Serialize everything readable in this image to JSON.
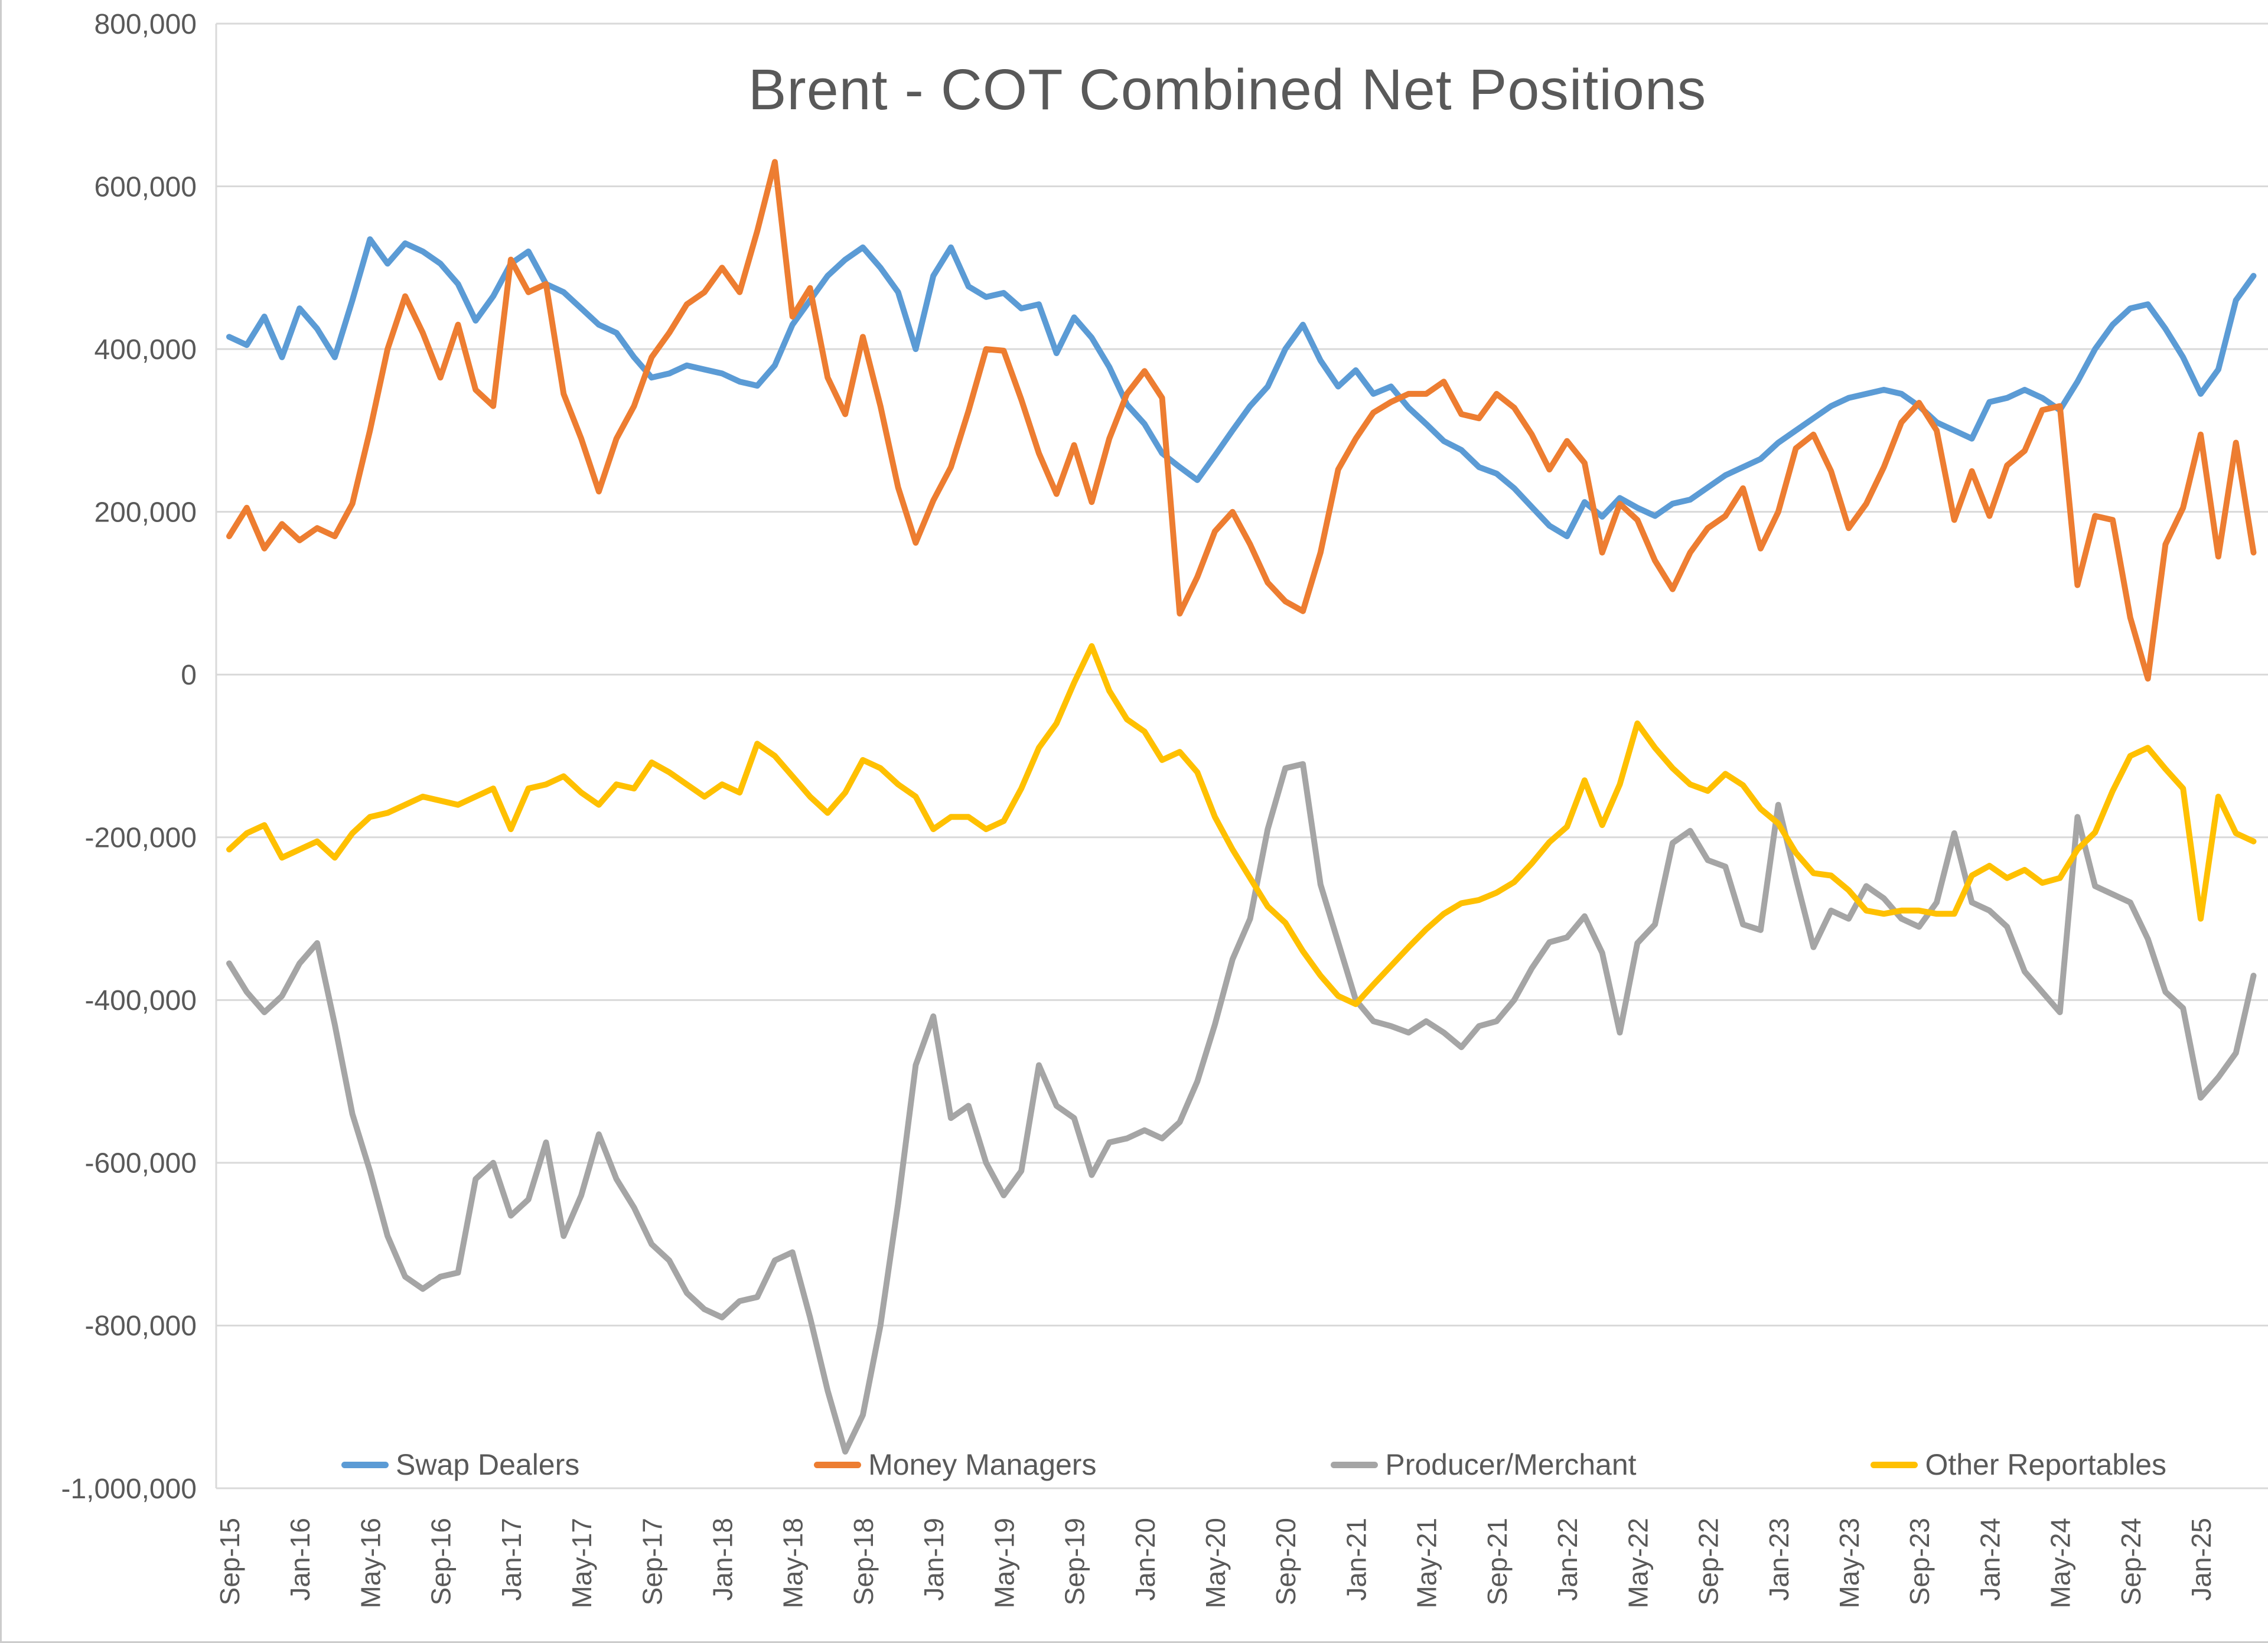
{
  "title": "Brent - COT Combined Net Positions",
  "colors": {
    "text": "#595959",
    "grid": "#D9D9D9",
    "background": "#FFFFFF"
  },
  "chart_data": {
    "type": "line",
    "title": "Brent - COT Combined Net Positions",
    "values_scale": "thousands",
    "legend_position": "bottom",
    "grid": "horizontal",
    "y_axis": {
      "min": -1000000,
      "max": 800000,
      "tick_labels": [
        "800,000",
        "600,000",
        "400,000",
        "200,000",
        "0",
        "-200,000",
        "-400,000",
        "-600,000",
        "-800,000",
        "-1,000,000"
      ],
      "tick_values": [
        800,
        600,
        400,
        200,
        0,
        -200,
        -400,
        -600,
        -800,
        -1000
      ]
    },
    "x_axis": {
      "tick_labels": [
        "Sep-15",
        "Jan-16",
        "May-16",
        "Sep-16",
        "Jan-17",
        "May-17",
        "Sep-17",
        "Jan-18",
        "May-18",
        "Sep-18",
        "Jan-19",
        "May-19",
        "Sep-19",
        "Jan-20",
        "May-20",
        "Sep-20",
        "Jan-21",
        "May-21",
        "Sep-21",
        "Jan-22",
        "May-22",
        "Sep-22",
        "Jan-23",
        "May-23",
        "Sep-23",
        "Jan-24",
        "May-24",
        "Sep-24",
        "Jan-25"
      ],
      "points_per_tick": 4,
      "frequency": "monthly samples of weekly data"
    },
    "series": [
      {
        "name": "Swap Dealers",
        "color": "#5B9BD5",
        "values": [
          415,
          405,
          440,
          390,
          450,
          425,
          390,
          460,
          535,
          505,
          530,
          520,
          505,
          480,
          435,
          465,
          505,
          520,
          480,
          470,
          450,
          430,
          420,
          390,
          365,
          370,
          380,
          375,
          370,
          360,
          355,
          380,
          430,
          460,
          490,
          510,
          525,
          500,
          470,
          400,
          490,
          525,
          477,
          464,
          469,
          450,
          455,
          395,
          439,
          414,
          378,
          332,
          308,
          272,
          255,
          239,
          269,
          300,
          330,
          354,
          400,
          430,
          386,
          354,
          374,
          345,
          354,
          328,
          308,
          287,
          276,
          255,
          247,
          229,
          206,
          183,
          170,
          212,
          194,
          217,
          205,
          195,
          210,
          215,
          230,
          245,
          255,
          265,
          285,
          300,
          315,
          330,
          340,
          345,
          350,
          345,
          330,
          310,
          300,
          290,
          335,
          340,
          350,
          340,
          325,
          360,
          400,
          430,
          450,
          455,
          425,
          390,
          345,
          375,
          460,
          490
        ]
      },
      {
        "name": "Money Managers",
        "color": "#ED7D31",
        "values": [
          170,
          205,
          155,
          185,
          165,
          180,
          170,
          210,
          300,
          400,
          465,
          420,
          365,
          430,
          350,
          330,
          510,
          470,
          480,
          345,
          290,
          225,
          290,
          330,
          390,
          420,
          455,
          470,
          500,
          470,
          545,
          630,
          440,
          475,
          365,
          320,
          415,
          330,
          230,
          162,
          214,
          255,
          324,
          400,
          398,
          338,
          272,
          222,
          282,
          212,
          290,
          345,
          373,
          340,
          75,
          120,
          176,
          200,
          160,
          113,
          90,
          78,
          150,
          252,
          290,
          322,
          335,
          345,
          345,
          360,
          320,
          315,
          345,
          328,
          295,
          252,
          287,
          260,
          150,
          210,
          190,
          140,
          105,
          150,
          180,
          195,
          229,
          155,
          200,
          278,
          295,
          250,
          180,
          210,
          255,
          310,
          334,
          300,
          190,
          250,
          195,
          257,
          275,
          325,
          330,
          110,
          195,
          190,
          70,
          -5,
          160,
          205,
          295,
          145,
          285,
          150
        ]
      },
      {
        "name": "Producer/Merchant",
        "color": "#A5A5A5",
        "values": [
          -355,
          -390,
          -415,
          -395,
          -355,
          -330,
          -430,
          -540,
          -610,
          -690,
          -740,
          -755,
          -740,
          -735,
          -620,
          -600,
          -665,
          -645,
          -575,
          -690,
          -640,
          -565,
          -620,
          -655,
          -700,
          -720,
          -760,
          -780,
          -790,
          -770,
          -765,
          -720,
          -710,
          -790,
          -880,
          -955,
          -910,
          -800,
          -650,
          -480,
          -420,
          -545,
          -530,
          -600,
          -640,
          -610,
          -480,
          -530,
          -545,
          -615,
          -575,
          -570,
          -560,
          -570,
          -550,
          -500,
          -430,
          -350,
          -300,
          -190,
          -115,
          -110,
          -258,
          -329,
          -400,
          -426,
          -432,
          -440,
          -426,
          -440,
          -458,
          -432,
          -426,
          -400,
          -361,
          -329,
          -323,
          -297,
          -342,
          -440,
          -330,
          -307,
          -207,
          -192,
          -228,
          -236,
          -307,
          -314,
          -160,
          -250,
          -335,
          -290,
          -300,
          -260,
          -275,
          -300,
          -310,
          -280,
          -195,
          -280,
          -290,
          -310,
          -365,
          -390,
          -415,
          -175,
          -260,
          -270,
          -280,
          -325,
          -390,
          -410,
          -520,
          -495,
          -465,
          -370
        ]
      },
      {
        "name": "Other Reportables",
        "color": "#FFC000",
        "values": [
          -215,
          -195,
          -185,
          -225,
          -215,
          -205,
          -225,
          -195,
          -175,
          -170,
          -160,
          -150,
          -155,
          -160,
          -150,
          -140,
          -190,
          -140,
          -135,
          -125,
          -145,
          -160,
          -135,
          -140,
          -108,
          -120,
          -135,
          -150,
          -135,
          -145,
          -85,
          -100,
          -125,
          -150,
          -170,
          -145,
          -105,
          -115,
          -135,
          -150,
          -190,
          -175,
          -175,
          -190,
          -180,
          -140,
          -90,
          -60,
          -10,
          35,
          -20,
          -55,
          -70,
          -105,
          -95,
          -120,
          -175,
          -215,
          -250,
          -285,
          -305,
          -340,
          -370,
          -395,
          -405,
          -381,
          -358,
          -335,
          -313,
          -294,
          -281,
          -277,
          -268,
          -255,
          -232,
          -206,
          -187,
          -130,
          -185,
          -135,
          -60,
          -90,
          -115,
          -135,
          -143,
          -122,
          -136,
          -165,
          -183,
          -219,
          -244,
          -247,
          -265,
          -290,
          -294,
          -290,
          -290,
          -294,
          -294,
          -247,
          -235,
          -250,
          -240,
          -256,
          -250,
          -215,
          -194,
          -143,
          -100,
          -90,
          -116,
          -140,
          -300,
          -150,
          -195,
          -205
        ]
      }
    ]
  }
}
